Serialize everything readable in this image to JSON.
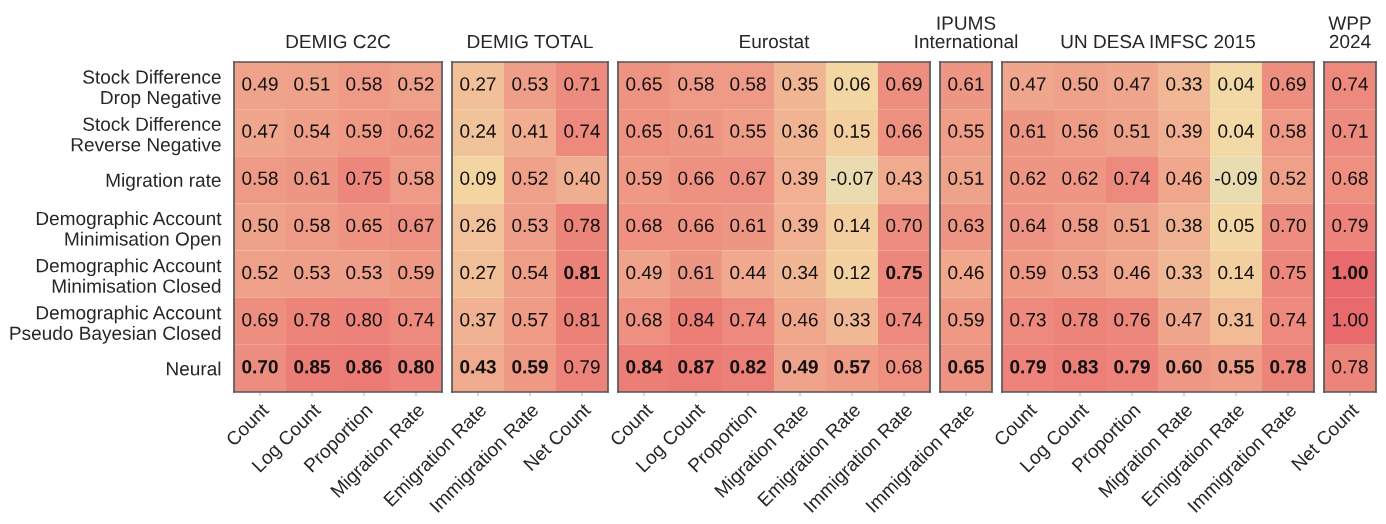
{
  "chart_data": [
    {
      "type": "heatmap",
      "title": "DEMIG C2C",
      "categories": [
        "Count",
        "Log Count",
        "Proportion",
        "Migration Rate"
      ],
      "y_categories": [
        "Stock Difference\nDrop Negative",
        "Stock Difference\nReverse Negative",
        "Migration rate",
        "Demographic Account\nMinimisation Open",
        "Demographic Account\nMinimisation Closed",
        "Demographic Account\nPseudo Bayesian Closed",
        "Neural"
      ],
      "cells": [
        [
          0.49,
          0.51,
          0.58,
          0.52
        ],
        [
          0.47,
          0.54,
          0.59,
          0.62
        ],
        [
          0.58,
          0.61,
          0.75,
          0.58
        ],
        [
          0.5,
          0.58,
          0.65,
          0.67
        ],
        [
          0.52,
          0.53,
          0.53,
          0.59
        ],
        [
          0.69,
          0.78,
          0.8,
          0.74
        ],
        [
          0.7,
          0.85,
          0.86,
          0.8
        ]
      ],
      "cell_labels": [
        [
          "0.49",
          "0.51",
          "0.58",
          "0.52"
        ],
        [
          "0.47",
          "0.54",
          "0.59",
          "0.62"
        ],
        [
          "0.58",
          "0.61",
          "0.75",
          "0.58"
        ],
        [
          "0.50",
          "0.58",
          "0.65",
          "0.67"
        ],
        [
          "0.52",
          "0.53",
          "0.53",
          "0.59"
        ],
        [
          "0.69",
          "0.78",
          "0.80",
          "0.74"
        ],
        [
          "0.70",
          "0.85",
          "0.86",
          "0.80"
        ]
      ]
    },
    {
      "type": "heatmap",
      "title": "DEMIG TOTAL",
      "categories": [
        "Emigration Rate",
        "Immigration Rate",
        "Net Count"
      ],
      "y_categories": [
        null,
        null,
        null,
        null,
        null,
        null,
        null
      ],
      "cells": [
        [
          0.27,
          0.53,
          0.71
        ],
        [
          0.24,
          0.41,
          0.74
        ],
        [
          0.09,
          0.52,
          0.4
        ],
        [
          0.26,
          0.53,
          0.78
        ],
        [
          0.27,
          0.54,
          0.81
        ],
        [
          0.37,
          0.57,
          0.81
        ],
        [
          0.43,
          0.59,
          0.79
        ]
      ],
      "cell_labels": [
        [
          "0.27",
          "0.53",
          "0.71"
        ],
        [
          "0.24",
          "0.41",
          "0.74"
        ],
        [
          "0.09",
          "0.52",
          "0.40"
        ],
        [
          "0.26",
          "0.53",
          "0.78"
        ],
        [
          "0.27",
          "0.54",
          "0.81"
        ],
        [
          "0.37",
          "0.57",
          "0.81"
        ],
        [
          "0.43",
          "0.59",
          "0.79"
        ]
      ],
      "tick_labels": "x"
    },
    {
      "type": "heatmap",
      "title": "Eurostat",
      "categories": [
        "Count",
        "Log Count",
        "Proportion",
        "Migration Rate",
        "Emigration Rate",
        "Immigration Rate"
      ],
      "y_categories": [
        null,
        null,
        null,
        null,
        null,
        null,
        null
      ],
      "cells": [
        [
          0.65,
          0.58,
          0.58,
          0.35,
          0.06,
          0.69
        ],
        [
          0.65,
          0.61,
          0.55,
          0.36,
          0.15,
          0.66
        ],
        [
          0.59,
          0.66,
          0.67,
          0.39,
          -0.07,
          0.43
        ],
        [
          0.68,
          0.66,
          0.61,
          0.39,
          0.14,
          0.7
        ],
        [
          0.49,
          0.61,
          0.44,
          0.34,
          0.12,
          0.75
        ],
        [
          0.68,
          0.84,
          0.74,
          0.46,
          0.33,
          0.74
        ],
        [
          0.84,
          0.87,
          0.82,
          0.49,
          0.57,
          0.68
        ]
      ],
      "cell_labels": [
        [
          "0.65",
          "0.58",
          "0.58",
          "0.35",
          "0.06",
          "0.69"
        ],
        [
          "0.65",
          "0.61",
          "0.55",
          "0.36",
          "0.15",
          "0.66"
        ],
        [
          "0.59",
          "0.66",
          "0.67",
          "0.39",
          "-0.07",
          "0.43"
        ],
        [
          "0.68",
          "0.66",
          "0.61",
          "0.39",
          "0.14",
          "0.70"
        ],
        [
          "0.49",
          "0.61",
          "0.44",
          "0.34",
          "0.12",
          "0.75"
        ],
        [
          "0.68",
          "0.84",
          "0.74",
          "0.46",
          "0.33",
          "0.74"
        ],
        [
          "0.84",
          "0.87",
          "0.82",
          "0.49",
          "0.57",
          "0.68"
        ]
      ],
      "tick_labels": "x"
    },
    {
      "type": "heatmap",
      "title": "IPUMS\nInternational",
      "categories": [
        "Immigration Rate"
      ],
      "y_categories": [
        null,
        null,
        null,
        null,
        null,
        null,
        null
      ],
      "cells": [
        [
          0.61
        ],
        [
          0.55
        ],
        [
          0.51
        ],
        [
          0.63
        ],
        [
          0.46
        ],
        [
          0.59
        ],
        [
          0.65
        ]
      ],
      "cell_labels": [
        [
          "0.61"
        ],
        [
          "0.55"
        ],
        [
          "0.51"
        ],
        [
          "0.63"
        ],
        [
          "0.46"
        ],
        [
          "0.59"
        ],
        [
          "0.65"
        ]
      ],
      "tick_labels": "x"
    },
    {
      "type": "heatmap",
      "title": "UN DESA IMFSC 2015",
      "categories": [
        "Count",
        "Log Count",
        "Proportion",
        "Migration Rate",
        "Emigration Rate",
        "Immigration Rate"
      ],
      "y_categories": [
        null,
        null,
        null,
        null,
        null,
        null,
        null
      ],
      "cells": [
        [
          0.47,
          0.5,
          0.47,
          0.33,
          0.04,
          0.69
        ],
        [
          0.61,
          0.56,
          0.51,
          0.39,
          0.04,
          0.58
        ],
        [
          0.62,
          0.62,
          0.74,
          0.46,
          -0.09,
          0.52
        ],
        [
          0.64,
          0.58,
          0.51,
          0.38,
          0.05,
          0.7
        ],
        [
          0.59,
          0.53,
          0.46,
          0.33,
          0.14,
          0.75
        ],
        [
          0.73,
          0.78,
          0.76,
          0.47,
          0.31,
          0.74
        ],
        [
          0.79,
          0.83,
          0.79,
          0.6,
          0.55,
          0.78
        ]
      ],
      "cell_labels": [
        [
          "0.47",
          "0.50",
          "0.47",
          "0.33",
          "0.04",
          "0.69"
        ],
        [
          "0.61",
          "0.56",
          "0.51",
          "0.39",
          "0.04",
          "0.58"
        ],
        [
          "0.62",
          "0.62",
          "0.74",
          "0.46",
          "-0.09",
          "0.52"
        ],
        [
          "0.64",
          "0.58",
          "0.51",
          "0.38",
          "0.05",
          "0.70"
        ],
        [
          "0.59",
          "0.53",
          "0.46",
          "0.33",
          "0.14",
          "0.75"
        ],
        [
          "0.73",
          "0.78",
          "0.76",
          "0.47",
          "0.31",
          "0.74"
        ],
        [
          "0.79",
          "0.83",
          "0.79",
          "0.60",
          "0.55",
          "0.78"
        ]
      ],
      "tick_labels": "x"
    },
    {
      "type": "heatmap",
      "title": "WPP\n2024",
      "categories": [
        "Net Count"
      ],
      "y_categories": [
        null,
        null,
        null,
        null,
        null,
        null,
        null
      ],
      "cells": [
        [
          0.74
        ],
        [
          0.71
        ],
        [
          0.68
        ],
        [
          0.79
        ],
        [
          1.0
        ],
        [
          1.0
        ],
        [
          0.78
        ]
      ],
      "cell_labels": [
        [
          "0.74"
        ],
        [
          "0.71"
        ],
        [
          "0.68"
        ],
        [
          "0.79"
        ],
        [
          "1.00"
        ],
        [
          "1.00"
        ],
        [
          "0.78"
        ]
      ],
      "tick_labels": "x"
    }
  ]
}
